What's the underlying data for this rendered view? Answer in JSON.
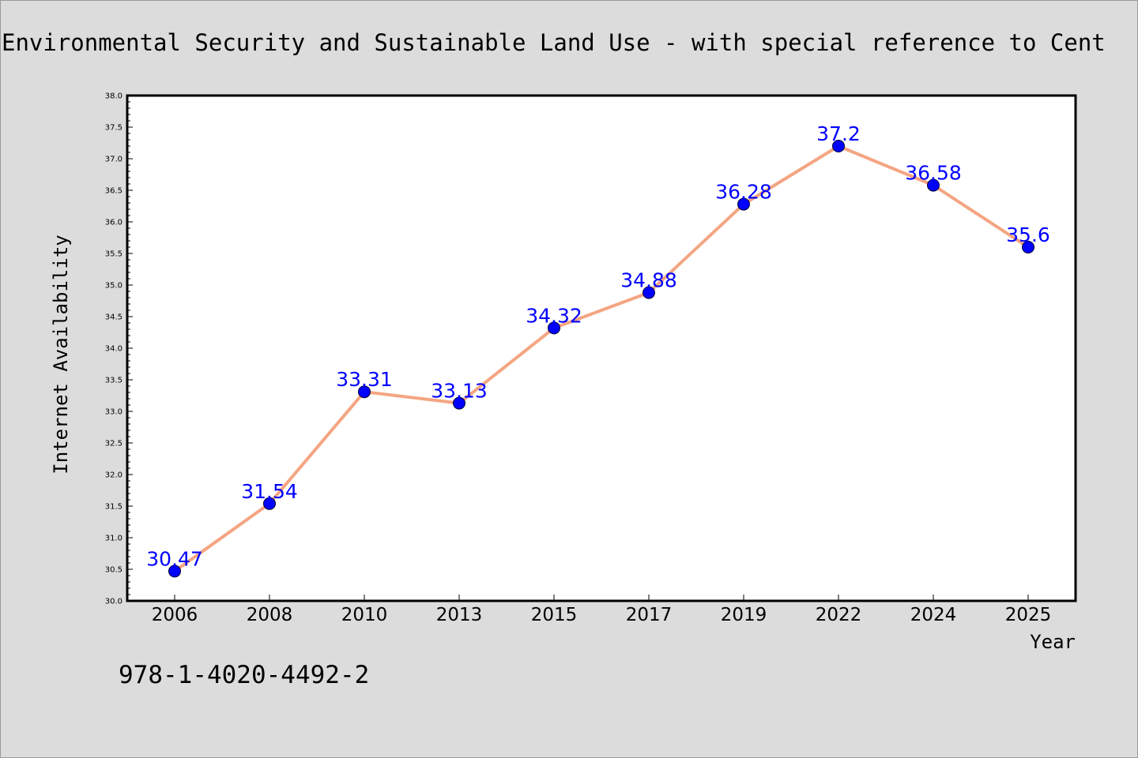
{
  "title": "Environmental Security and Sustainable Land Use - with special reference to Cent",
  "footer": "978-1-4020-4492-2",
  "colors": {
    "background": "#dcdcdc",
    "plot_background": "#ffffff",
    "line": "#f4a582",
    "marker": "#0000ff",
    "data_label": "#0000ff"
  },
  "chart_data": {
    "type": "line",
    "xlabel": "Year",
    "ylabel": "Internet Availability",
    "ylim": [
      30.0,
      38.0
    ],
    "y_ticks": [
      "30.0",
      "30.5",
      "31.0",
      "31.5",
      "32.0",
      "32.5",
      "33.0",
      "33.5",
      "34.0",
      "34.5",
      "35.0",
      "35.5",
      "36.0",
      "36.5",
      "37.0",
      "37.5",
      "38.0"
    ],
    "categories": [
      "2006",
      "2008",
      "2010",
      "2013",
      "2015",
      "2017",
      "2019",
      "2022",
      "2024",
      "2025"
    ],
    "series": [
      {
        "values": [
          30.47,
          31.54,
          33.31,
          33.13,
          34.32,
          34.88,
          36.28,
          37.2,
          36.58,
          35.6
        ],
        "labels": [
          "30.47",
          "31.54",
          "33.31",
          "33.13",
          "34.32",
          "34.88",
          "36.28",
          "37.2",
          "36.58",
          "35.6"
        ]
      }
    ],
    "grid": false,
    "legend": "none"
  }
}
